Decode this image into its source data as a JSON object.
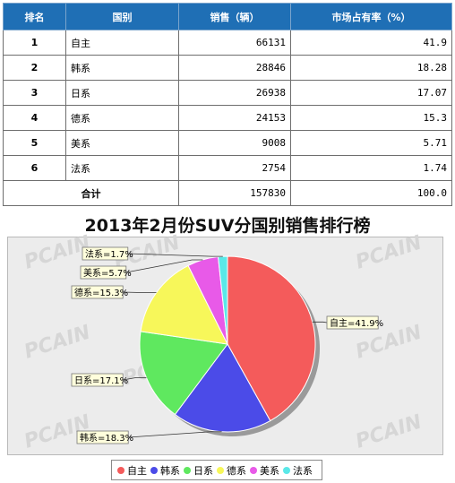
{
  "table": {
    "headers": [
      "排名",
      "国别",
      "销售（辆）",
      "市场占有率（%）"
    ],
    "rows": [
      {
        "rank": "1",
        "country": "自主",
        "sales": "66131",
        "share": "41.9"
      },
      {
        "rank": "2",
        "country": "韩系",
        "sales": "28846",
        "share": "18.28"
      },
      {
        "rank": "3",
        "country": "日系",
        "sales": "26938",
        "share": "17.07"
      },
      {
        "rank": "4",
        "country": "德系",
        "sales": "24153",
        "share": "15.3"
      },
      {
        "rank": "5",
        "country": "美系",
        "sales": "9008",
        "share": "5.71"
      },
      {
        "rank": "6",
        "country": "法系",
        "sales": "2754",
        "share": "1.74"
      }
    ],
    "total": {
      "label": "合计",
      "sales": "157830",
      "share": "100.0"
    }
  },
  "chart_data": {
    "type": "pie",
    "title": "2013年2月份SUV分国别销售排行榜",
    "slices": [
      {
        "label": "自主",
        "value": 41.9,
        "text": "自主=41.9%",
        "color": "#f45b5b"
      },
      {
        "label": "韩系",
        "value": 18.3,
        "text": "韩系=18.3%",
        "color": "#4b4be8"
      },
      {
        "label": "日系",
        "value": 17.1,
        "text": "日系=17.1%",
        "color": "#5fe85f"
      },
      {
        "label": "德系",
        "value": 15.3,
        "text": "德系=15.3%",
        "color": "#f7f75a"
      },
      {
        "label": "美系",
        "value": 5.7,
        "text": "美系=5.7%",
        "color": "#e85ae8"
      },
      {
        "label": "法系",
        "value": 1.7,
        "text": "法系=1.7%",
        "color": "#5ae8e8"
      }
    ],
    "legend_position": "bottom",
    "watermark": "PCAIN"
  }
}
